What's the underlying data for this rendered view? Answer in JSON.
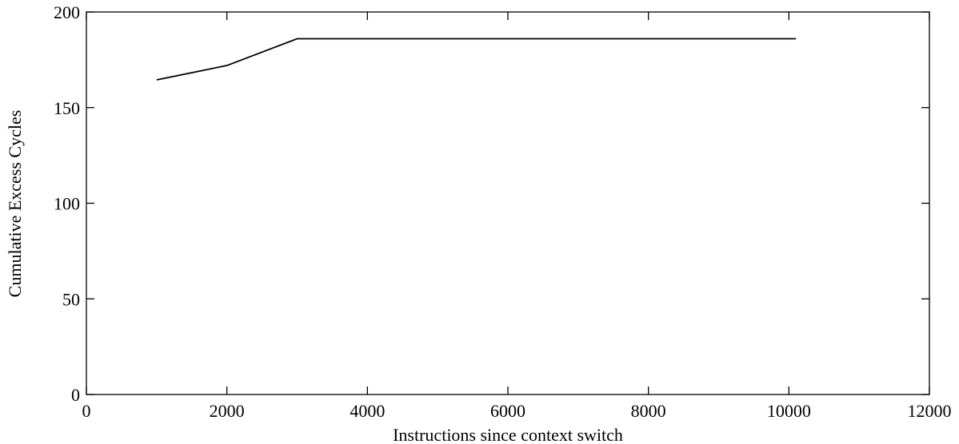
{
  "chart_data": {
    "type": "line",
    "title": "",
    "xlabel": "Instructions since context switch",
    "ylabel": "Cumulative Excess Cycles",
    "xlim": [
      0,
      12000
    ],
    "ylim": [
      0,
      200
    ],
    "xticks": [
      "0",
      "2000",
      "4000",
      "6000",
      "8000",
      "10000",
      "12000"
    ],
    "yticks": [
      "0",
      "50",
      "100",
      "150",
      "200"
    ],
    "grid": false,
    "legend": "none",
    "series": [
      {
        "x": [
          1000,
          2000,
          3000,
          4000,
          5000,
          6000,
          7000,
          8000,
          9000,
          10100
        ],
        "y": [
          164.5,
          172,
          186,
          186,
          186,
          186,
          186,
          186,
          186,
          186
        ]
      }
    ],
    "colors": {
      "line": "#000000",
      "axes": "#000000",
      "background": "#ffffff"
    }
  }
}
